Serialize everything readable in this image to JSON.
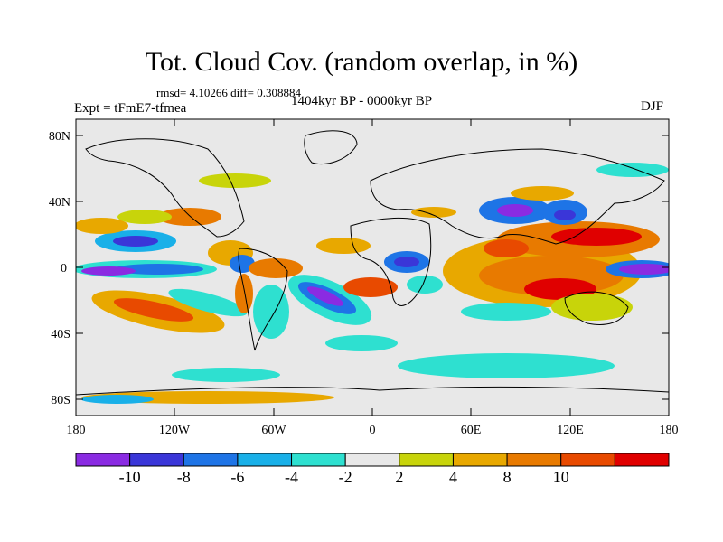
{
  "header": {
    "title": "Tot. Cloud Cov. (random overlap, in %)",
    "stats": "rmsd= 4.10266 diff= 0.308884",
    "experiment": "Expt = tFmE7-tfmea",
    "period": "1404kyr BP - 0000kyr BP",
    "season": "DJF"
  },
  "axes": {
    "y_ticks": [
      "80N",
      "40N",
      "0",
      "40S",
      "80S"
    ],
    "x_ticks": [
      "180",
      "120W",
      "60W",
      "0",
      "60E",
      "120E",
      "180"
    ]
  },
  "colorbar": {
    "labels": [
      "-10",
      "-8",
      "-6",
      "-4",
      "-2",
      "2",
      "4",
      "8",
      "10"
    ],
    "colors": [
      "#8a2be2",
      "#3a36d8",
      "#1e74e6",
      "#19b0e8",
      "#2ee0d0",
      "#e8e8e8",
      "#c8d40a",
      "#e8a800",
      "#e87a00",
      "#e84a00",
      "#e00000"
    ]
  }
}
